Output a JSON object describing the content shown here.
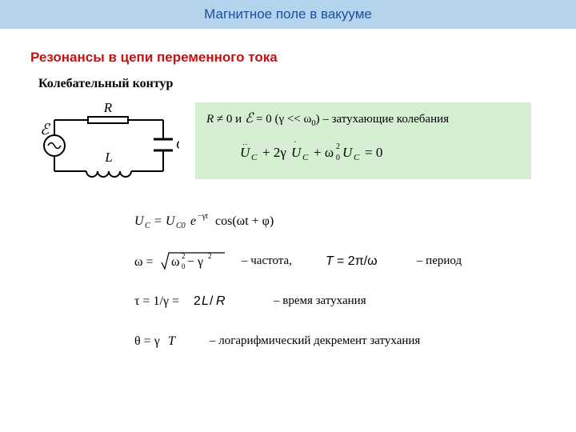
{
  "banner": {
    "text": "Магнитное поле в вакууме",
    "bg_color": "#b4d4ee",
    "text_color": "#1f4e9c"
  },
  "section_title": {
    "text": "Резонансы в цепи переменного тока",
    "color": "#c01414"
  },
  "subtitle": {
    "text": "Колебательный контур",
    "color": "#000000"
  },
  "circuit": {
    "labels": {
      "R": "R",
      "L": "L",
      "C": "C",
      "emf": "ℰ"
    },
    "stroke": "#000000",
    "stroke_width": 2,
    "label_fontsize": 17
  },
  "green_box": {
    "bg_color": "#d6efd3",
    "condition_prefix_R": "R",
    "condition_mid1": " ≠ 0 и ",
    "condition_E": "ℰ",
    "condition_mid2": " = 0 (γ  << ω",
    "condition_sub": "0",
    "condition_tail": ") – затухающие колебания",
    "diff_eq": {
      "terms": [
        "U",
        "C",
        "+ 2γ",
        "U",
        "C",
        "+ ω",
        "0",
        "2",
        "U",
        "C",
        "= 0"
      ],
      "color": "#000000"
    }
  },
  "formulas": {
    "uc": {
      "base": "U",
      "sub1": "C",
      "eq": " = ",
      "u0": "U",
      "sub2": "C0",
      "exp_e": "e",
      "exp_pow": "−γt",
      "cos": "cos(ωt + φ)"
    },
    "omega": {
      "lhs": "ω = ",
      "rad": "ω",
      "rad_sub": "0",
      "rad_sup": "2",
      "minus": " − γ",
      "g_sup": "2",
      "label": "– частота,"
    },
    "period": {
      "text": "T = 2π/ω",
      "label": "– период"
    },
    "tau": {
      "text": "τ = 1/γ = 2L/R",
      "label": "– время затухания"
    },
    "theta": {
      "text": "θ = γT",
      "label": "– логарифмический декремент затухания"
    }
  },
  "colors": {
    "text": "#000000",
    "formula_font": "Times New Roman"
  }
}
